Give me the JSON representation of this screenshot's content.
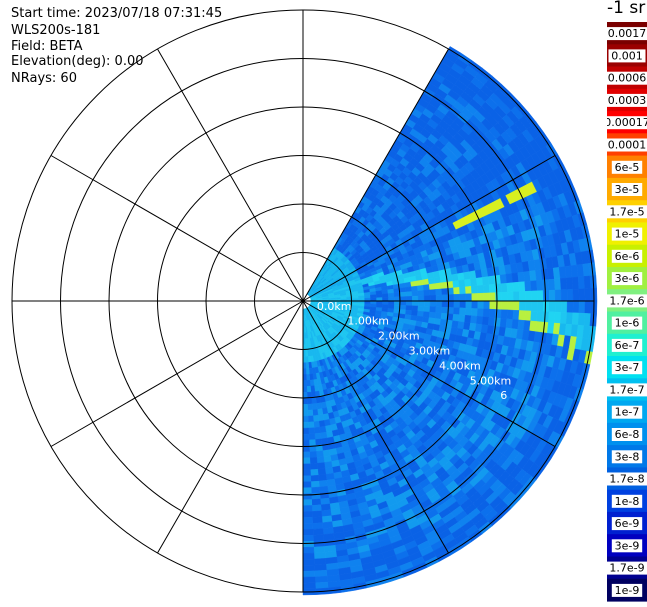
{
  "header": {
    "start_time": "Start time: 2023/07/18 07:31:45",
    "instrument": "WLS200s-181",
    "field": "Field: BETA",
    "elevation": "Elevation(deg): 0.00",
    "nrays": "NRays: 60"
  },
  "colorbar": {
    "title": "-1 sr",
    "labels": [
      "0.0017",
      "0.001",
      "0.0006",
      "0.0003",
      "0.00017",
      "0.0001",
      "6e-5",
      "3e-5",
      "1.7e-5",
      "1e-5",
      "6e-6",
      "3e-6",
      "1.7e-6",
      "1e-6",
      "6e-7",
      "3e-7",
      "1.7e-7",
      "1e-7",
      "6e-8",
      "3e-8",
      "1.7e-8",
      "1e-8",
      "6e-9",
      "3e-9",
      "1.7e-9",
      "1e-9"
    ],
    "colors": [
      "#7a0000",
      "#9a0000",
      "#c00000",
      "#e00000",
      "#ff0000",
      "#ff4000",
      "#ff8000",
      "#ffaa00",
      "#ffd000",
      "#f0f000",
      "#c8f000",
      "#a0f040",
      "#80f080",
      "#50f0a0",
      "#20f0d0",
      "#00e0f0",
      "#00c0f0",
      "#00a8f0",
      "#0090ee",
      "#0078e8",
      "#0060e0",
      "#0040e0",
      "#0020d0",
      "#0000c0",
      "#000090",
      "#000060"
    ]
  },
  "chart_data": {
    "type": "heatmap",
    "subtype": "polar-ppi",
    "field": "BETA",
    "units": "sr-1",
    "nrays": 60,
    "range_rings_km": [
      0.5,
      1.0,
      1.5,
      2.0,
      2.5,
      3.0
    ],
    "ring_labels": [
      "0.0km",
      "1.00km",
      "2.00km",
      "3.00km",
      "4.00km",
      "5.00km",
      "6"
    ],
    "azimuth_spokes_deg": [
      0,
      30,
      60,
      90,
      120,
      150,
      180,
      210,
      240,
      270,
      300,
      330
    ],
    "data_sector_deg": [
      60,
      180
    ],
    "dominant_value": "1e-7 to 6e-8",
    "features": [
      {
        "desc": "linear echo band",
        "value": "1e-6 to 3e-6"
      },
      {
        "desc": "near-range high",
        "value": "3e-7"
      }
    ],
    "grid": true
  }
}
